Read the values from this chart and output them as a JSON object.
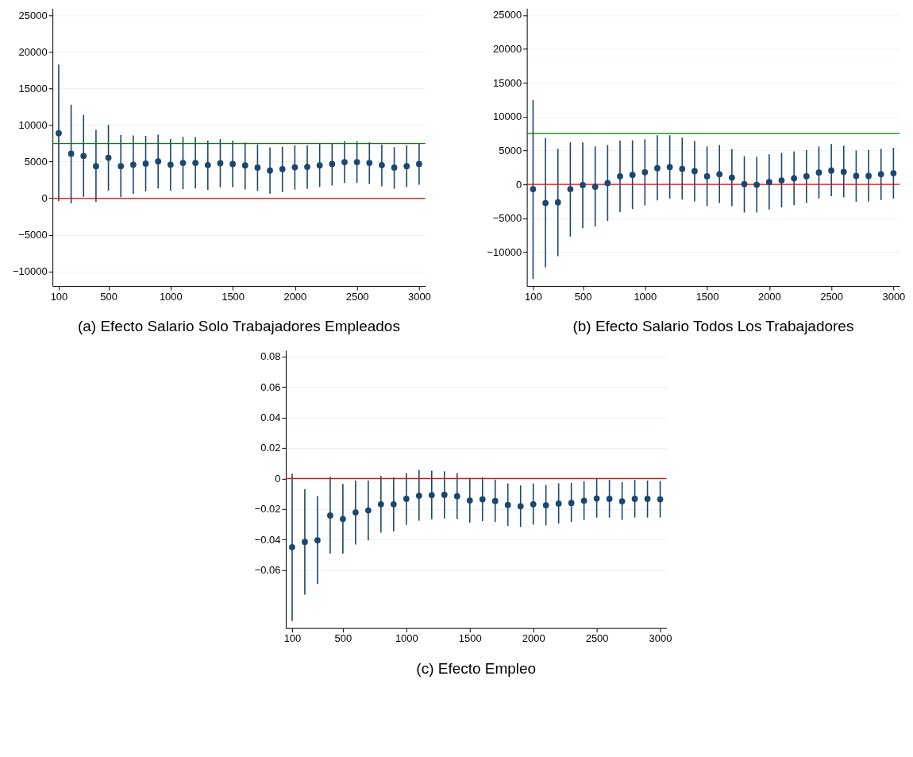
{
  "chart_data": [
    {
      "type": "scatter",
      "title": "(a) Efecto Salario Solo Trabajadores Empleados",
      "color": "#1a476f",
      "marker": "circle",
      "grid": "y",
      "x": [
        100,
        200,
        300,
        400,
        500,
        600,
        700,
        800,
        900,
        1000,
        1100,
        1200,
        1300,
        1400,
        1500,
        1600,
        1700,
        1800,
        1900,
        2000,
        2100,
        2200,
        2300,
        2400,
        2500,
        2600,
        2700,
        2800,
        2900,
        3000
      ],
      "values": [
        8900,
        6100,
        5800,
        4400,
        5550,
        4400,
        4600,
        4750,
        5050,
        4600,
        4850,
        4850,
        4550,
        4800,
        4700,
        4500,
        4200,
        3800,
        4000,
        4250,
        4300,
        4500,
        4700,
        4950,
        4950,
        4850,
        4550,
        4200,
        4400,
        4700
      ],
      "errors": [
        [
          -400,
          18300
        ],
        [
          -700,
          12800
        ],
        [
          200,
          11400
        ],
        [
          -500,
          9350
        ],
        [
          1050,
          10050
        ],
        [
          150,
          8650
        ],
        [
          600,
          8600
        ],
        [
          950,
          8550
        ],
        [
          1350,
          8700
        ],
        [
          1050,
          8100
        ],
        [
          1250,
          8400
        ],
        [
          1350,
          8350
        ],
        [
          1150,
          7900
        ],
        [
          1500,
          8100
        ],
        [
          1500,
          7900
        ],
        [
          1200,
          7650
        ],
        [
          1000,
          7350
        ],
        [
          650,
          6950
        ],
        [
          850,
          7050
        ],
        [
          1200,
          7250
        ],
        [
          1300,
          7250
        ],
        [
          1550,
          7450
        ],
        [
          1750,
          7550
        ],
        [
          2100,
          7800
        ],
        [
          2100,
          7800
        ],
        [
          1950,
          7650
        ],
        [
          1650,
          7350
        ],
        [
          1300,
          7000
        ],
        [
          1550,
          7250
        ],
        [
          1850,
          7550
        ]
      ],
      "ref_lines": [
        {
          "axis": "y",
          "value": 0,
          "color": "#ff0000"
        },
        {
          "axis": "y",
          "value": 7500,
          "color": "#008000"
        }
      ],
      "xlim": [
        50,
        3050
      ],
      "xticks": [
        100,
        500,
        1000,
        1500,
        2000,
        2500,
        3000
      ],
      "ylim": [
        -12000,
        26000
      ],
      "yticks": [
        -10000,
        -5000,
        0,
        5000,
        10000,
        15000,
        20000,
        25000
      ]
    },
    {
      "type": "scatter",
      "title": "(b) Efecto Salario Todos Los Trabajadores",
      "color": "#1a476f",
      "marker": "circle",
      "grid": "y",
      "x": [
        100,
        200,
        300,
        400,
        500,
        600,
        700,
        800,
        900,
        1000,
        1100,
        1200,
        1300,
        1400,
        1500,
        1600,
        1700,
        1800,
        1900,
        2000,
        2100,
        2200,
        2300,
        2400,
        2500,
        2600,
        2700,
        2800,
        2900,
        3000
      ],
      "values": [
        -700,
        -2750,
        -2650,
        -700,
        -100,
        -350,
        200,
        1200,
        1400,
        1800,
        2400,
        2550,
        2300,
        1950,
        1200,
        1500,
        1000,
        50,
        -50,
        350,
        600,
        900,
        1200,
        1750,
        2050,
        1850,
        1250,
        1250,
        1500,
        1650
      ],
      "errors": [
        [
          -13950,
          12450
        ],
        [
          -12250,
          6800
        ],
        [
          -10600,
          5250
        ],
        [
          -7700,
          6200
        ],
        [
          -6450,
          6200
        ],
        [
          -6200,
          5600
        ],
        [
          -5400,
          5800
        ],
        [
          -4100,
          6450
        ],
        [
          -3650,
          6500
        ],
        [
          -3100,
          6650
        ],
        [
          -2350,
          7250
        ],
        [
          -2100,
          7250
        ],
        [
          -2250,
          6900
        ],
        [
          -2500,
          6400
        ],
        [
          -3200,
          5600
        ],
        [
          -2750,
          5800
        ],
        [
          -3200,
          5200
        ],
        [
          -4150,
          4150
        ],
        [
          -4150,
          4050
        ],
        [
          -3700,
          4450
        ],
        [
          -3400,
          4650
        ],
        [
          -3050,
          4850
        ],
        [
          -2750,
          5050
        ],
        [
          -2100,
          5600
        ],
        [
          -1750,
          5950
        ],
        [
          -1900,
          5700
        ],
        [
          -2550,
          5000
        ],
        [
          -2550,
          5050
        ],
        [
          -2300,
          5250
        ],
        [
          -2100,
          5400
        ]
      ],
      "ref_lines": [
        {
          "axis": "y",
          "value": 0,
          "color": "#ff0000"
        },
        {
          "axis": "y",
          "value": 7500,
          "color": "#008000"
        }
      ],
      "xlim": [
        50,
        3050
      ],
      "xticks": [
        100,
        500,
        1000,
        1500,
        2000,
        2500,
        3000
      ],
      "ylim": [
        -15000,
        26000
      ],
      "yticks": [
        -10000,
        -5000,
        0,
        5000,
        10000,
        15000,
        20000,
        25000
      ]
    },
    {
      "type": "scatter",
      "title": "(c) Efecto Empleo",
      "color": "#1a476f",
      "marker": "circle",
      "grid": "y",
      "x": [
        100,
        200,
        300,
        400,
        500,
        600,
        700,
        800,
        900,
        1000,
        1100,
        1200,
        1300,
        1400,
        1500,
        1600,
        1700,
        1800,
        1900,
        2000,
        2100,
        2200,
        2300,
        2400,
        2500,
        2600,
        2700,
        2800,
        2900,
        3000
      ],
      "values": [
        -0.045,
        -0.0415,
        -0.0405,
        -0.0242,
        -0.0265,
        -0.0222,
        -0.0209,
        -0.0169,
        -0.0169,
        -0.0133,
        -0.0113,
        -0.0109,
        -0.0107,
        -0.0116,
        -0.0144,
        -0.0136,
        -0.0147,
        -0.0173,
        -0.0182,
        -0.0169,
        -0.0175,
        -0.0164,
        -0.016,
        -0.0145,
        -0.0131,
        -0.0133,
        -0.0149,
        -0.0133,
        -0.0133,
        -0.0136
      ],
      "errors": [
        [
          -0.0933,
          0.0031
        ],
        [
          -0.076,
          -0.0069
        ],
        [
          -0.0691,
          -0.0115
        ],
        [
          -0.0493,
          0.0011
        ],
        [
          -0.0493,
          -0.0036
        ],
        [
          -0.0433,
          -0.0013
        ],
        [
          -0.0405,
          -0.0013
        ],
        [
          -0.0355,
          0.0018
        ],
        [
          -0.0347,
          0.0007
        ],
        [
          -0.0304,
          0.0036
        ],
        [
          -0.0276,
          0.0055
        ],
        [
          -0.0267,
          0.0051
        ],
        [
          -0.0262,
          0.0047
        ],
        [
          -0.0265,
          0.0035
        ],
        [
          -0.0289,
          0.0004
        ],
        [
          -0.028,
          0.0007
        ],
        [
          -0.0285,
          -0.0007
        ],
        [
          -0.0311,
          -0.0033
        ],
        [
          -0.0318,
          -0.0045
        ],
        [
          -0.0302,
          -0.0033
        ],
        [
          -0.0307,
          -0.0042
        ],
        [
          -0.0295,
          -0.0031
        ],
        [
          -0.0285,
          -0.0029
        ],
        [
          -0.0271,
          -0.0018
        ],
        [
          -0.0256,
          -0.0002
        ],
        [
          -0.0256,
          -0.0009
        ],
        [
          -0.0271,
          -0.0024
        ],
        [
          -0.0256,
          -0.0009
        ],
        [
          -0.0256,
          -0.0013
        ],
        [
          -0.0256,
          -0.0016
        ]
      ],
      "ref_lines": [
        {
          "axis": "y",
          "value": 0,
          "color": "#ff0000"
        }
      ],
      "xlim": [
        50,
        3050
      ],
      "xticks": [
        100,
        500,
        1000,
        1500,
        2000,
        2500,
        3000
      ],
      "ylim": [
        -0.098,
        0.084
      ],
      "yticks": [
        -0.06,
        -0.04,
        -0.02,
        0,
        0.02,
        0.04,
        0.06,
        0.08
      ]
    }
  ]
}
